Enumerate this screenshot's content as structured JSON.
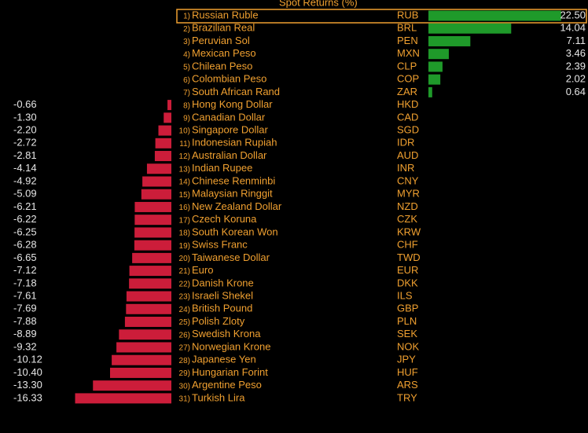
{
  "chart_data": {
    "type": "bar",
    "title": "Spot Returns (%)",
    "ranks": [
      "1)",
      "2)",
      "3)",
      "4)",
      "5)",
      "6)",
      "7)",
      "8)",
      "9)",
      "10)",
      "11)",
      "12)",
      "13)",
      "14)",
      "15)",
      "16)",
      "17)",
      "18)",
      "19)",
      "20)",
      "21)",
      "22)",
      "23)",
      "24)",
      "25)",
      "26)",
      "27)",
      "28)",
      "29)",
      "30)",
      "31)"
    ],
    "categories": [
      "Russian Ruble",
      "Brazilian Real",
      "Peruvian Sol",
      "Mexican Peso",
      "Chilean Peso",
      "Colombian Peso",
      "South African Rand",
      "Hong Kong Dollar",
      "Canadian Dollar",
      "Singapore Dollar",
      "Indonesian Rupiah",
      "Australian Dollar",
      "Indian Rupee",
      "Chinese Renminbi",
      "Malaysian Ringgit",
      "New Zealand Dollar",
      "Czech Koruna",
      "South Korean Won",
      "Swiss Franc",
      "Taiwanese Dollar",
      "Euro",
      "Danish Krone",
      "Israeli Shekel",
      "British Pound",
      "Polish Zloty",
      "Swedish Krona",
      "Norwegian Krone",
      "Japanese Yen",
      "Hungarian Forint",
      "Argentine Peso",
      "Turkish Lira"
    ],
    "codes": [
      "RUB",
      "BRL",
      "PEN",
      "MXN",
      "CLP",
      "COP",
      "ZAR",
      "HKD",
      "CAD",
      "SGD",
      "IDR",
      "AUD",
      "INR",
      "CNY",
      "MYR",
      "NZD",
      "CZK",
      "KRW",
      "CHF",
      "TWD",
      "EUR",
      "DKK",
      "ILS",
      "GBP",
      "PLN",
      "SEK",
      "NOK",
      "JPY",
      "HUF",
      "ARS",
      "TRY"
    ],
    "values": [
      22.5,
      14.04,
      7.11,
      3.46,
      2.39,
      2.02,
      0.64,
      -0.66,
      -1.3,
      -2.2,
      -2.72,
      -2.81,
      -4.14,
      -4.92,
      -5.09,
      -6.21,
      -6.22,
      -6.25,
      -6.28,
      -6.65,
      -7.12,
      -7.18,
      -7.61,
      -7.69,
      -7.88,
      -8.89,
      -9.32,
      -10.12,
      -10.4,
      -13.3,
      -16.33
    ],
    "value_labels": [
      "22.50",
      "14.04",
      "7.11",
      "3.46",
      "2.39",
      "2.02",
      "0.64",
      "-0.66",
      "-1.30",
      "-2.20",
      "-2.72",
      "-2.81",
      "-4.14",
      "-4.92",
      "-5.09",
      "-6.21",
      "-6.22",
      "-6.25",
      "-6.28",
      "-6.65",
      "-7.12",
      "-7.18",
      "-7.61",
      "-7.69",
      "-7.88",
      "-8.89",
      "-9.32",
      "-10.12",
      "-10.40",
      "-13.30",
      "-16.33"
    ],
    "positive_color": "#1f9a2a",
    "negative_color": "#cc1d3a"
  }
}
